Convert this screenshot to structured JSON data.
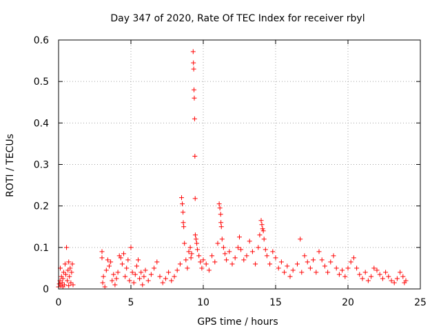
{
  "chart_data": {
    "type": "scatter",
    "title": "Day 347 of 2020, Rate Of TEC Index for receiver rbyl",
    "xlabel": "GPS time / hours",
    "ylabel": "ROTI / TECUs",
    "xlim": [
      0,
      25
    ],
    "ylim": [
      0,
      0.6
    ],
    "x_ticks": [
      0,
      5,
      10,
      15,
      20,
      25
    ],
    "y_ticks": [
      0,
      0.1,
      0.2,
      0.3,
      0.4,
      0.5,
      0.6
    ],
    "x_tick_labels": [
      "0",
      "5",
      "10",
      "15",
      "20",
      "25"
    ],
    "y_tick_labels": [
      "0",
      "0.1",
      "0.2",
      "0.3",
      "0.4",
      "0.5",
      "0.6"
    ],
    "grid": true,
    "marker": "+",
    "series": [
      {
        "name": "ROTI",
        "color": "#ff0000",
        "points": [
          [
            0.0,
            0.005
          ],
          [
            0.05,
            0.012
          ],
          [
            0.1,
            0.02
          ],
          [
            0.12,
            0.05
          ],
          [
            0.15,
            0.008
          ],
          [
            0.2,
            0.03
          ],
          [
            0.25,
            0.015
          ],
          [
            0.3,
            0.025
          ],
          [
            0.35,
            0.04
          ],
          [
            0.4,
            0.01
          ],
          [
            0.45,
            0.06
          ],
          [
            0.5,
            0.035
          ],
          [
            0.55,
            0.1
          ],
          [
            0.6,
            0.02
          ],
          [
            0.65,
            0.045
          ],
          [
            0.7,
            0.065
          ],
          [
            0.75,
            0.03
          ],
          [
            0.8,
            0.05
          ],
          [
            0.85,
            0.015
          ],
          [
            0.9,
            0.04
          ],
          [
            0.95,
            0.06
          ],
          [
            1.0,
            0.01
          ],
          [
            0.3,
            0.005
          ],
          [
            0.7,
            0.008
          ],
          [
            3.0,
            0.09
          ],
          [
            3.0,
            0.075
          ],
          [
            3.05,
            0.015
          ],
          [
            3.1,
            0.03
          ],
          [
            3.2,
            0.005
          ],
          [
            3.3,
            0.045
          ],
          [
            3.4,
            0.07
          ],
          [
            3.5,
            0.055
          ],
          [
            3.6,
            0.065
          ],
          [
            3.7,
            0.02
          ],
          [
            3.8,
            0.035
          ],
          [
            3.9,
            0.01
          ],
          [
            4.0,
            0.025
          ],
          [
            4.1,
            0.04
          ],
          [
            4.2,
            0.08
          ],
          [
            4.3,
            0.075
          ],
          [
            4.4,
            0.06
          ],
          [
            4.5,
            0.085
          ],
          [
            4.6,
            0.03
          ],
          [
            4.7,
            0.05
          ],
          [
            4.8,
            0.07
          ],
          [
            4.9,
            0.02
          ],
          [
            5.0,
            0.1
          ],
          [
            5.1,
            0.04
          ],
          [
            5.2,
            0.015
          ],
          [
            5.3,
            0.035
          ],
          [
            5.4,
            0.055
          ],
          [
            5.5,
            0.07
          ],
          [
            5.6,
            0.025
          ],
          [
            5.7,
            0.04
          ],
          [
            5.8,
            0.01
          ],
          [
            5.9,
            0.03
          ],
          [
            6.0,
            0.045
          ],
          [
            6.2,
            0.02
          ],
          [
            6.4,
            0.035
          ],
          [
            6.6,
            0.05
          ],
          [
            6.8,
            0.065
          ],
          [
            7.0,
            0.03
          ],
          [
            7.2,
            0.015
          ],
          [
            7.4,
            0.025
          ],
          [
            7.6,
            0.04
          ],
          [
            7.8,
            0.02
          ],
          [
            8.0,
            0.03
          ],
          [
            8.2,
            0.045
          ],
          [
            8.4,
            0.06
          ],
          [
            8.5,
            0.22
          ],
          [
            8.55,
            0.205
          ],
          [
            8.6,
            0.185
          ],
          [
            8.62,
            0.16
          ],
          [
            8.65,
            0.15
          ],
          [
            8.7,
            0.11
          ],
          [
            8.8,
            0.07
          ],
          [
            8.9,
            0.05
          ],
          [
            9.0,
            0.09
          ],
          [
            9.1,
            0.1
          ],
          [
            9.15,
            0.075
          ],
          [
            9.2,
            0.085
          ],
          [
            9.3,
            0.572
          ],
          [
            9.32,
            0.545
          ],
          [
            9.34,
            0.53
          ],
          [
            9.36,
            0.48
          ],
          [
            9.38,
            0.46
          ],
          [
            9.4,
            0.41
          ],
          [
            9.42,
            0.32
          ],
          [
            9.44,
            0.218
          ],
          [
            9.45,
            0.13
          ],
          [
            9.5,
            0.12
          ],
          [
            9.55,
            0.11
          ],
          [
            9.6,
            0.095
          ],
          [
            9.7,
            0.08
          ],
          [
            9.8,
            0.065
          ],
          [
            9.9,
            0.05
          ],
          [
            10.0,
            0.07
          ],
          [
            10.2,
            0.06
          ],
          [
            10.4,
            0.045
          ],
          [
            10.6,
            0.08
          ],
          [
            10.8,
            0.065
          ],
          [
            11.0,
            0.11
          ],
          [
            11.1,
            0.205
          ],
          [
            11.15,
            0.195
          ],
          [
            11.2,
            0.18
          ],
          [
            11.22,
            0.16
          ],
          [
            11.25,
            0.15
          ],
          [
            11.3,
            0.12
          ],
          [
            11.4,
            0.1
          ],
          [
            11.5,
            0.085
          ],
          [
            11.6,
            0.07
          ],
          [
            11.8,
            0.09
          ],
          [
            12.0,
            0.06
          ],
          [
            12.2,
            0.075
          ],
          [
            12.4,
            0.1
          ],
          [
            12.5,
            0.125
          ],
          [
            12.6,
            0.095
          ],
          [
            12.8,
            0.07
          ],
          [
            13.0,
            0.08
          ],
          [
            13.2,
            0.115
          ],
          [
            13.4,
            0.09
          ],
          [
            13.6,
            0.06
          ],
          [
            13.8,
            0.1
          ],
          [
            13.9,
            0.13
          ],
          [
            14.0,
            0.165
          ],
          [
            14.05,
            0.155
          ],
          [
            14.1,
            0.145
          ],
          [
            14.15,
            0.14
          ],
          [
            14.2,
            0.12
          ],
          [
            14.3,
            0.095
          ],
          [
            14.4,
            0.08
          ],
          [
            14.6,
            0.06
          ],
          [
            14.8,
            0.09
          ],
          [
            15.0,
            0.075
          ],
          [
            15.2,
            0.05
          ],
          [
            15.4,
            0.065
          ],
          [
            15.6,
            0.04
          ],
          [
            15.8,
            0.055
          ],
          [
            16.0,
            0.03
          ],
          [
            16.2,
            0.045
          ],
          [
            16.5,
            0.06
          ],
          [
            16.7,
            0.12
          ],
          [
            16.8,
            0.04
          ],
          [
            17.0,
            0.08
          ],
          [
            17.2,
            0.065
          ],
          [
            17.4,
            0.05
          ],
          [
            17.6,
            0.07
          ],
          [
            17.8,
            0.04
          ],
          [
            18.0,
            0.09
          ],
          [
            18.2,
            0.07
          ],
          [
            18.4,
            0.055
          ],
          [
            18.6,
            0.04
          ],
          [
            18.8,
            0.065
          ],
          [
            19.0,
            0.08
          ],
          [
            19.2,
            0.05
          ],
          [
            19.4,
            0.035
          ],
          [
            19.6,
            0.045
          ],
          [
            19.8,
            0.03
          ],
          [
            20.0,
            0.05
          ],
          [
            20.2,
            0.065
          ],
          [
            20.4,
            0.075
          ],
          [
            20.6,
            0.05
          ],
          [
            20.8,
            0.035
          ],
          [
            21.0,
            0.025
          ],
          [
            21.2,
            0.04
          ],
          [
            21.4,
            0.02
          ],
          [
            21.6,
            0.03
          ],
          [
            21.8,
            0.05
          ],
          [
            22.0,
            0.045
          ],
          [
            22.2,
            0.035
          ],
          [
            22.4,
            0.025
          ],
          [
            22.6,
            0.04
          ],
          [
            22.8,
            0.03
          ],
          [
            23.0,
            0.02
          ],
          [
            23.2,
            0.015
          ],
          [
            23.4,
            0.025
          ],
          [
            23.6,
            0.04
          ],
          [
            23.8,
            0.03
          ],
          [
            23.9,
            0.015
          ],
          [
            24.0,
            0.02
          ]
        ]
      }
    ]
  }
}
